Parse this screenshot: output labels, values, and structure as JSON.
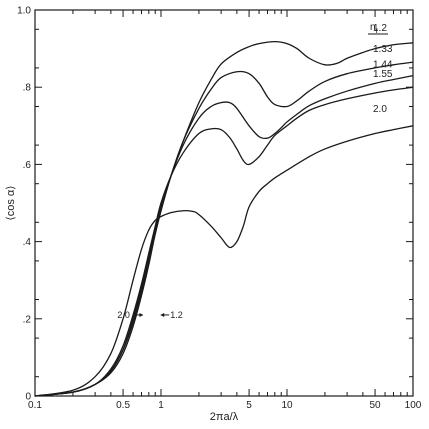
{
  "chart_data": {
    "type": "line",
    "title": "",
    "xlabel": "2πa/λ",
    "ylabel": "⟨cos α⟩",
    "xscale": "log",
    "xlim": [
      0.1,
      100
    ],
    "ylim": [
      0,
      1.0
    ],
    "grid": false,
    "xticks": [
      {
        "value": 0.1,
        "label": "0.1"
      },
      {
        "value": 0.5,
        "label": "0.5"
      },
      {
        "value": 1,
        "label": "1"
      },
      {
        "value": 5,
        "label": "5"
      },
      {
        "value": 10,
        "label": "10"
      },
      {
        "value": 50,
        "label": "50"
      },
      {
        "value": 100,
        "label": "100"
      }
    ],
    "xminor": [
      0.2,
      0.3,
      0.4,
      0.6,
      0.7,
      0.8,
      0.9,
      2,
      3,
      4,
      6,
      7,
      8,
      9,
      20,
      30,
      40,
      60,
      70,
      80,
      90
    ],
    "yticks": [
      {
        "value": 0,
        "label": "0"
      },
      {
        "value": 0.2,
        "label": ".2"
      },
      {
        "value": 0.4,
        "label": ".4"
      },
      {
        "value": 0.6,
        "label": ".6"
      },
      {
        "value": 0.8,
        "label": ".8"
      },
      {
        "value": 1.0,
        "label": "1.0"
      }
    ],
    "legend_header": "n_r",
    "series": [
      {
        "name": "1.2",
        "x": [
          0.1,
          0.2,
          0.3,
          0.4,
          0.5,
          0.6,
          0.7,
          0.8,
          0.9,
          1.0,
          1.2,
          1.5,
          2,
          2.5,
          3,
          4,
          5,
          6,
          8,
          10,
          12,
          15,
          20,
          25,
          30,
          40,
          50,
          70,
          100
        ],
        "y": [
          0.0,
          0.01,
          0.03,
          0.06,
          0.11,
          0.18,
          0.26,
          0.34,
          0.42,
          0.48,
          0.57,
          0.66,
          0.76,
          0.82,
          0.86,
          0.89,
          0.905,
          0.913,
          0.918,
          0.913,
          0.9,
          0.875,
          0.858,
          0.862,
          0.875,
          0.89,
          0.9,
          0.91,
          0.915
        ]
      },
      {
        "name": "1.33",
        "x": [
          0.1,
          0.2,
          0.3,
          0.4,
          0.5,
          0.6,
          0.7,
          0.8,
          0.9,
          1.0,
          1.2,
          1.5,
          2,
          2.5,
          3,
          4,
          5,
          6,
          7,
          8,
          10,
          12,
          15,
          20,
          30,
          50,
          70,
          100
        ],
        "y": [
          0.0,
          0.01,
          0.03,
          0.065,
          0.12,
          0.19,
          0.27,
          0.35,
          0.42,
          0.48,
          0.57,
          0.66,
          0.745,
          0.795,
          0.825,
          0.84,
          0.835,
          0.81,
          0.775,
          0.755,
          0.75,
          0.765,
          0.79,
          0.815,
          0.835,
          0.85,
          0.858,
          0.865
        ]
      },
      {
        "name": "1.44",
        "x": [
          0.1,
          0.2,
          0.3,
          0.4,
          0.5,
          0.6,
          0.7,
          0.8,
          0.9,
          1.0,
          1.2,
          1.5,
          2,
          2.5,
          3,
          3.5,
          4,
          5,
          6,
          7,
          8,
          9,
          10,
          12,
          15,
          20,
          30,
          50,
          70,
          100
        ],
        "y": [
          0.0,
          0.01,
          0.03,
          0.065,
          0.12,
          0.2,
          0.28,
          0.36,
          0.43,
          0.49,
          0.57,
          0.65,
          0.72,
          0.75,
          0.76,
          0.76,
          0.745,
          0.7,
          0.672,
          0.668,
          0.68,
          0.695,
          0.71,
          0.73,
          0.752,
          0.77,
          0.79,
          0.81,
          0.82,
          0.83
        ]
      },
      {
        "name": "1.55",
        "x": [
          0.1,
          0.2,
          0.3,
          0.4,
          0.5,
          0.6,
          0.7,
          0.8,
          0.9,
          1.0,
          1.2,
          1.5,
          2,
          2.5,
          3,
          3.5,
          4,
          4.5,
          5,
          6,
          7,
          8,
          10,
          12,
          15,
          20,
          30,
          50,
          70,
          100
        ],
        "y": [
          0.0,
          0.01,
          0.03,
          0.07,
          0.13,
          0.21,
          0.29,
          0.37,
          0.44,
          0.5,
          0.57,
          0.63,
          0.68,
          0.692,
          0.69,
          0.67,
          0.64,
          0.61,
          0.6,
          0.62,
          0.65,
          0.675,
          0.7,
          0.72,
          0.74,
          0.755,
          0.77,
          0.785,
          0.793,
          0.8
        ]
      },
      {
        "name": "2.0",
        "x": [
          0.1,
          0.2,
          0.3,
          0.4,
          0.5,
          0.6,
          0.7,
          0.8,
          0.9,
          1.0,
          1.2,
          1.5,
          1.8,
          2,
          2.5,
          3,
          3.5,
          4,
          4.5,
          5,
          6,
          7,
          8,
          10,
          15,
          20,
          30,
          50,
          70,
          100
        ],
        "y": [
          0.0,
          0.015,
          0.05,
          0.11,
          0.2,
          0.3,
          0.38,
          0.43,
          0.455,
          0.465,
          0.475,
          0.48,
          0.478,
          0.47,
          0.44,
          0.41,
          0.385,
          0.4,
          0.44,
          0.49,
          0.53,
          0.55,
          0.565,
          0.585,
          0.62,
          0.64,
          0.66,
          0.68,
          0.69,
          0.7
        ]
      }
    ],
    "annotations": [
      {
        "text": "2.0",
        "x": 0.65,
        "y": 0.21
      },
      {
        "text": "1.2",
        "x": 1.1,
        "y": 0.21
      }
    ]
  }
}
